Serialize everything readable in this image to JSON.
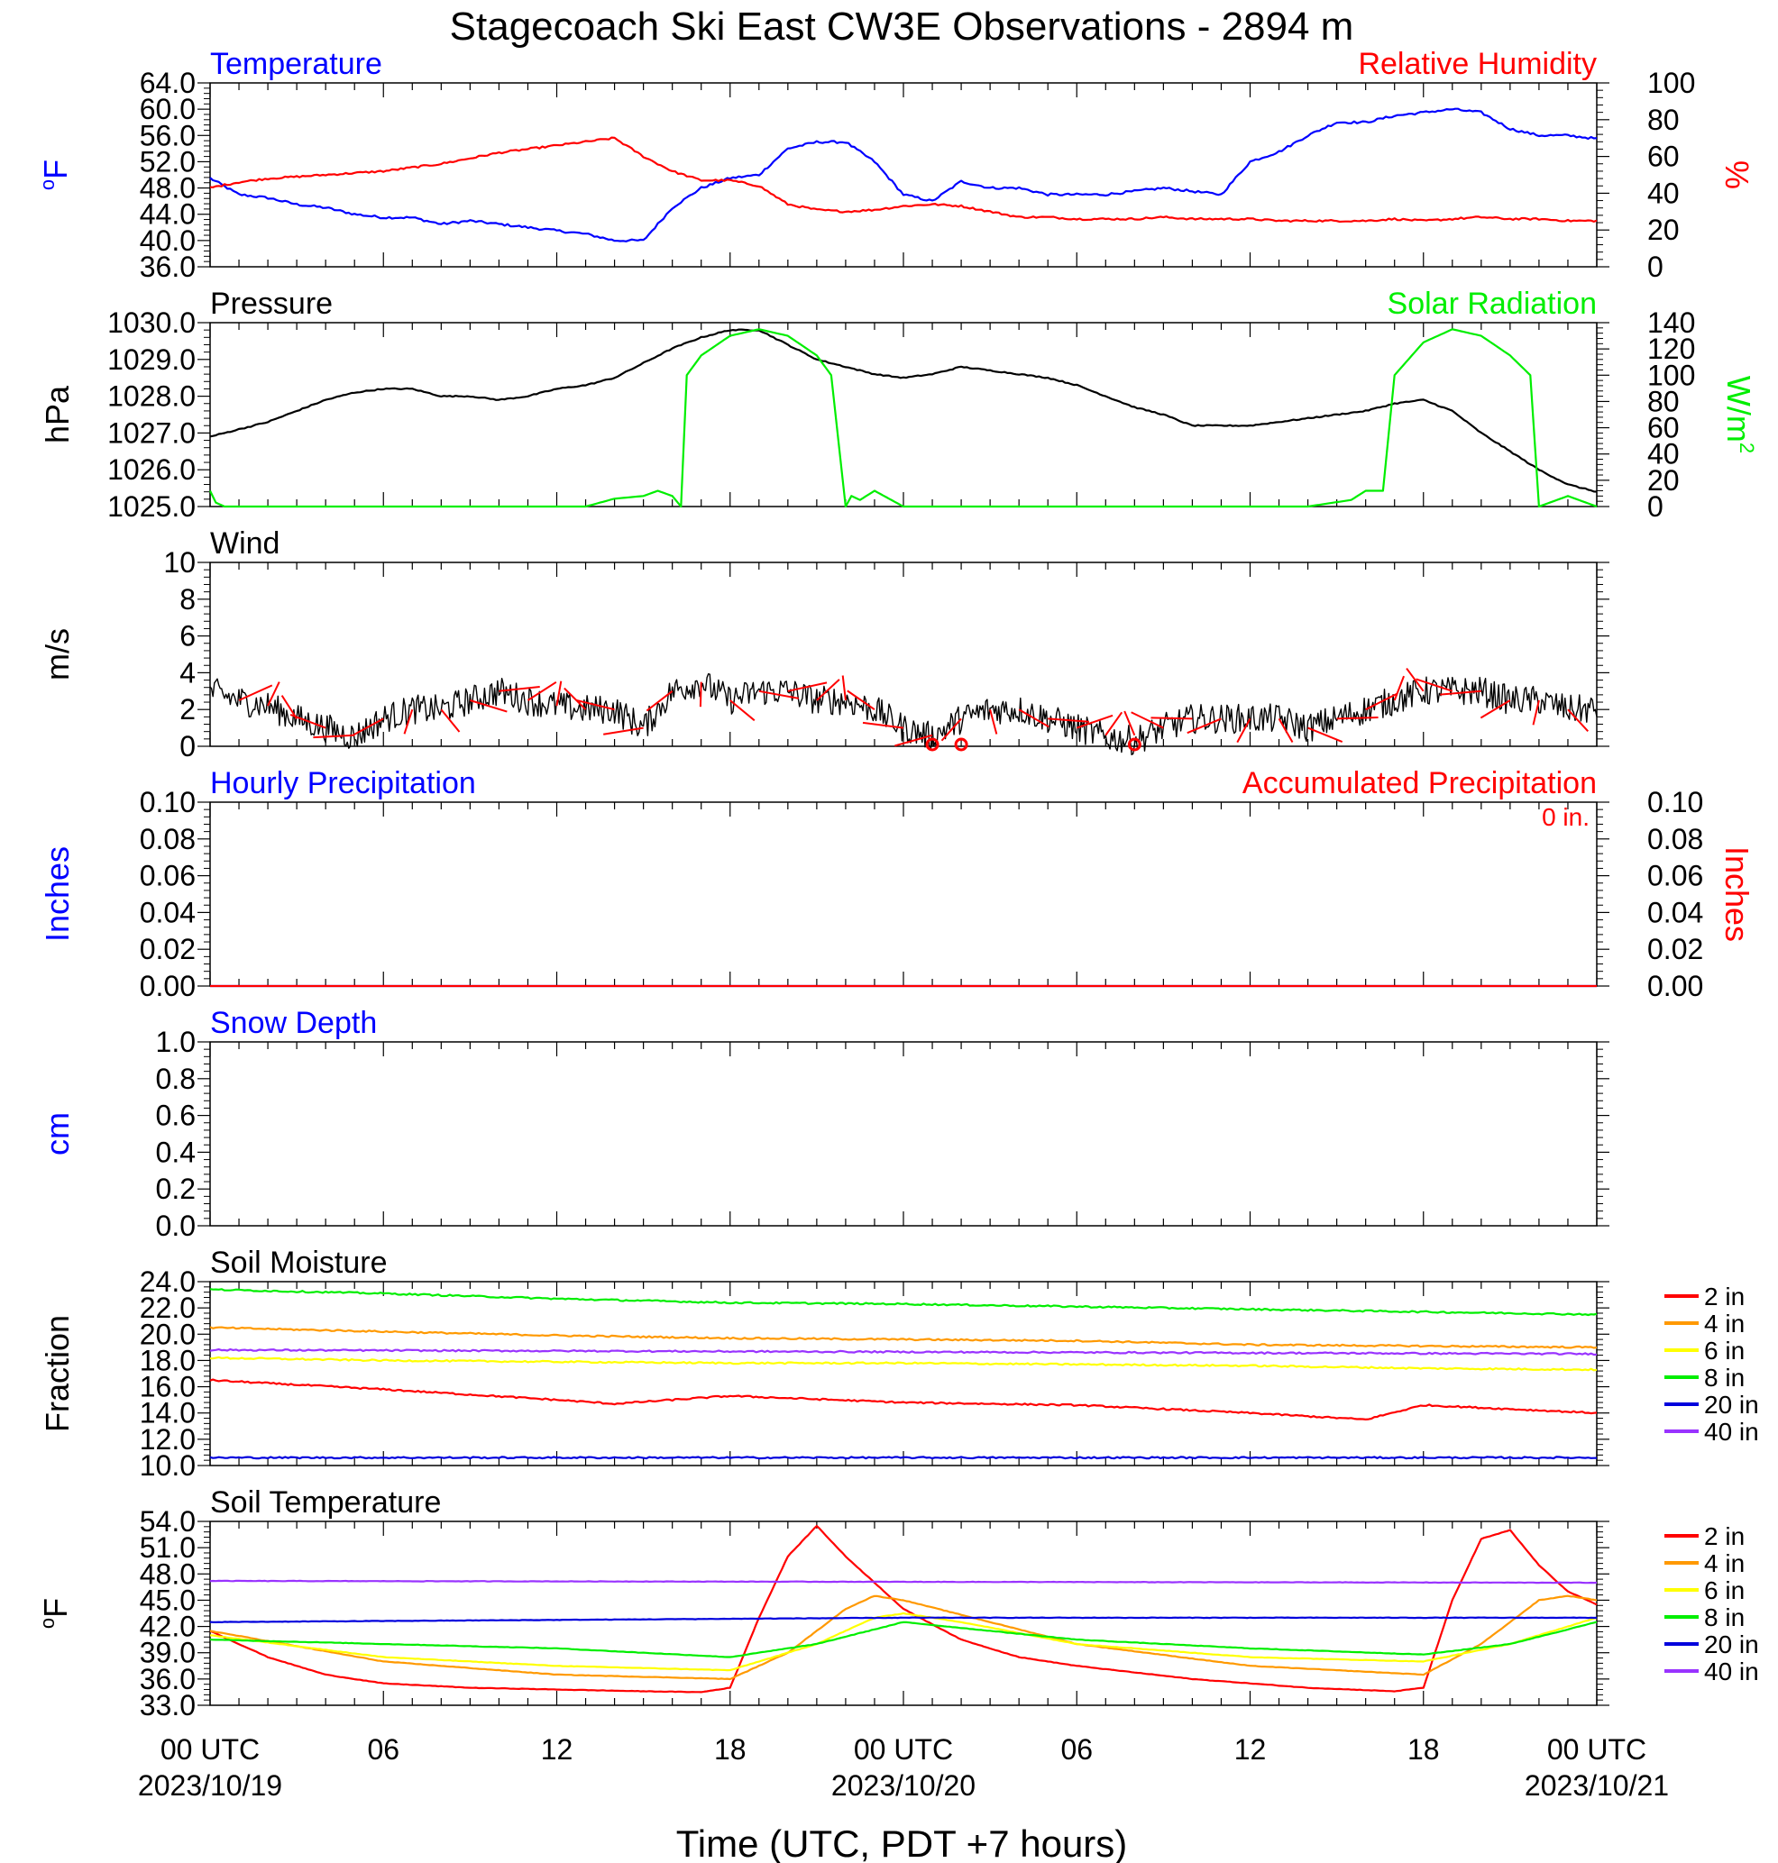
{
  "title": "Stagecoach Ski East CW3E Observations - 2894 m",
  "xlabel": "Time (UTC, PDT +7 hours)",
  "x_ticks": [
    {
      "hour": 0,
      "line1": "00 UTC",
      "line2": "2023/10/19"
    },
    {
      "hour": 6,
      "line1": "06",
      "line2": ""
    },
    {
      "hour": 12,
      "line1": "12",
      "line2": ""
    },
    {
      "hour": 18,
      "line1": "18",
      "line2": ""
    },
    {
      "hour": 24,
      "line1": "00 UTC",
      "line2": "2023/10/20"
    },
    {
      "hour": 30,
      "line1": "06",
      "line2": ""
    },
    {
      "hour": 36,
      "line1": "12",
      "line2": ""
    },
    {
      "hour": 42,
      "line1": "18",
      "line2": ""
    },
    {
      "hour": 48,
      "line1": "00 UTC",
      "line2": "2023/10/21"
    }
  ],
  "colors": {
    "temperature": "#0000ff",
    "humidity": "#ff0000",
    "pressure": "#000000",
    "solar": "#00ee00",
    "wind": "#000000",
    "barbs": "#ff0000",
    "2 in": "#ff0000",
    "4 in": "#ff9900",
    "6 in": "#ffff00",
    "8 in": "#00ee00",
    "20 in": "#0000dd",
    "40 in": "#9933ff"
  },
  "legend_labels": [
    "2 in",
    "4 in",
    "6 in",
    "8 in",
    "20 in",
    "40 in"
  ],
  "chart_data": [
    {
      "type": "line",
      "title_left": "Temperature",
      "title_right": "Relative Humidity",
      "ylabel": "°F",
      "ylabel_right": "%",
      "ylim": [
        36,
        64
      ],
      "ylim_right": [
        0,
        100
      ],
      "yticks": [
        "36.0",
        "40.0",
        "44.0",
        "48.0",
        "52.0",
        "56.0",
        "60.0",
        "64.0"
      ],
      "yticks_right": [
        "0",
        "20",
        "40",
        "60",
        "80",
        "100"
      ],
      "series": [
        {
          "name": "Temperature",
          "axis": "left",
          "color": "#0000ff",
          "x": [
            0,
            1,
            2,
            3,
            4,
            5,
            6,
            7,
            8,
            9,
            10,
            11,
            12,
            13,
            14,
            15,
            16,
            17,
            18,
            19,
            20,
            21,
            22,
            23,
            24,
            25,
            26,
            27,
            28,
            29,
            30,
            31,
            32,
            33,
            34,
            35,
            36,
            37,
            38,
            39,
            40,
            41,
            42,
            43,
            44,
            45,
            46,
            47,
            48
          ],
          "y": [
            49.5,
            47,
            46.5,
            45.5,
            45,
            44,
            43.5,
            43.5,
            42.5,
            43,
            42.5,
            42,
            41.5,
            41,
            40,
            40,
            45,
            48,
            49.5,
            50,
            54,
            55,
            55,
            52,
            47,
            46,
            49,
            48,
            48,
            47,
            47,
            47,
            47.5,
            48,
            47.5,
            47,
            52,
            53.5,
            56,
            58,
            58,
            59,
            59.5,
            60,
            59.5,
            57,
            56,
            56,
            55.5
          ]
        },
        {
          "name": "Relative Humidity",
          "axis": "right",
          "color": "#ff0000",
          "x": [
            0,
            1,
            2,
            3,
            4,
            5,
            6,
            7,
            8,
            9,
            10,
            11,
            12,
            13,
            14,
            15,
            16,
            17,
            18,
            19,
            20,
            21,
            22,
            23,
            24,
            25,
            26,
            27,
            28,
            29,
            30,
            31,
            32,
            33,
            34,
            35,
            36,
            37,
            38,
            39,
            40,
            41,
            42,
            43,
            44,
            45,
            46,
            47,
            48
          ],
          "y": [
            43,
            46,
            48,
            49,
            50,
            51,
            52,
            54,
            56,
            59,
            62,
            64,
            66,
            68,
            70,
            60,
            52,
            47,
            47,
            44,
            34,
            31,
            30,
            31,
            33,
            34,
            33,
            30,
            27,
            27,
            26,
            26,
            26,
            27,
            26,
            26,
            26,
            25,
            25,
            25,
            25,
            26,
            25,
            26,
            27,
            26,
            26,
            25,
            25
          ]
        }
      ]
    },
    {
      "type": "line",
      "title_left": "Pressure",
      "title_right": "Solar Radiation",
      "ylabel": "hPa",
      "ylabel_right": "W/m2",
      "ylim": [
        1025,
        1030
      ],
      "ylim_right": [
        0,
        140
      ],
      "yticks": [
        "1025.0",
        "1026.0",
        "1027.0",
        "1028.0",
        "1029.0",
        "1030.0"
      ],
      "yticks_right": [
        "0",
        "20",
        "40",
        "60",
        "80",
        "100",
        "120",
        "140"
      ],
      "series": [
        {
          "name": "Pressure",
          "axis": "left",
          "color": "#000000",
          "x": [
            0,
            1,
            2,
            3,
            4,
            5,
            6,
            7,
            8,
            9,
            10,
            11,
            12,
            13,
            14,
            15,
            16,
            17,
            18,
            19,
            20,
            21,
            22,
            23,
            24,
            25,
            26,
            27,
            28,
            29,
            30,
            31,
            32,
            33,
            34,
            35,
            36,
            37,
            38,
            39,
            40,
            41,
            42,
            43,
            44,
            45,
            46,
            47,
            48
          ],
          "y": [
            1026.9,
            1027.1,
            1027.3,
            1027.6,
            1027.9,
            1028.1,
            1028.2,
            1028.2,
            1028,
            1028,
            1027.9,
            1028,
            1028.2,
            1028.3,
            1028.5,
            1028.9,
            1029.3,
            1029.6,
            1029.8,
            1029.8,
            1029.4,
            1029.0,
            1028.8,
            1028.6,
            1028.5,
            1028.6,
            1028.8,
            1028.7,
            1028.6,
            1028.5,
            1028.3,
            1028.0,
            1027.7,
            1027.5,
            1027.2,
            1027.2,
            1027.2,
            1027.3,
            1027.4,
            1027.5,
            1027.6,
            1027.8,
            1027.9,
            1027.6,
            1027,
            1026.5,
            1026,
            1025.6,
            1025.4
          ]
        },
        {
          "name": "Solar Radiation",
          "axis": "right",
          "color": "#00ee00",
          "x": [
            0,
            0.2,
            0.5,
            6,
            13,
            14,
            15,
            15.5,
            16,
            16.3,
            16.5,
            17,
            18,
            19,
            20,
            21,
            21.5,
            22,
            22.2,
            22.5,
            23,
            24,
            37,
            38,
            39.5,
            40,
            40.6,
            41,
            42,
            43,
            44,
            45,
            45.7,
            46,
            47,
            48
          ],
          "y": [
            12,
            3,
            0,
            0,
            0,
            6,
            8,
            12,
            8,
            0,
            100,
            115,
            130,
            135,
            130,
            115,
            100,
            0,
            8,
            5,
            12,
            0,
            0,
            0,
            5,
            12,
            12,
            100,
            125,
            135,
            130,
            115,
            100,
            0,
            8,
            0
          ]
        }
      ]
    },
    {
      "type": "line",
      "title_left": "Wind",
      "ylabel": "m/s",
      "ylim": [
        0,
        10
      ],
      "yticks": [
        "0",
        "2",
        "4",
        "6",
        "8",
        "10"
      ],
      "series": [
        {
          "name": "Wind",
          "color": "#000000",
          "x": [
            0,
            1,
            2,
            3,
            4,
            5,
            6,
            7,
            8,
            9,
            10,
            11,
            12,
            13,
            14,
            15,
            16,
            17,
            18,
            19,
            20,
            21,
            22,
            23,
            24,
            25,
            26,
            27,
            28,
            29,
            30,
            31,
            32,
            33,
            34,
            35,
            36,
            37,
            38,
            39,
            40,
            41,
            42,
            43,
            44,
            45,
            46,
            47,
            48
          ],
          "y": [
            3,
            2.5,
            2.2,
            1.5,
            1,
            0.5,
            1.5,
            2,
            2,
            2.5,
            3,
            2.5,
            2.2,
            2,
            2,
            1,
            3,
            3.5,
            2.5,
            3,
            3,
            2.5,
            2.5,
            2,
            1,
            0.5,
            1.5,
            2,
            2,
            1.5,
            1,
            0.5,
            0.3,
            1,
            1.5,
            1.5,
            1.5,
            1.5,
            1,
            1.5,
            2,
            2.5,
            3,
            3,
            3,
            2.5,
            2.5,
            2,
            2
          ]
        }
      ],
      "calm_hours": [
        25,
        26,
        32
      ]
    },
    {
      "type": "line",
      "title_left": "Hourly Precipitation",
      "title_right": "Accumulated Precipitation",
      "annotation": "0 in.",
      "ylabel": "Inches",
      "ylabel_right": "Inches",
      "ylim": [
        0,
        0.1
      ],
      "ylim_right": [
        0,
        0.1
      ],
      "yticks": [
        "0.00",
        "0.02",
        "0.04",
        "0.06",
        "0.08",
        "0.10"
      ],
      "yticks_right": [
        "0.00",
        "0.02",
        "0.04",
        "0.06",
        "0.08",
        "0.10"
      ],
      "series": [
        {
          "name": "Hourly Precipitation",
          "axis": "left",
          "color": "#0000ff",
          "x": [
            0,
            48
          ],
          "y": [
            0,
            0
          ]
        },
        {
          "name": "Accumulated Precipitation",
          "axis": "right",
          "color": "#ff0000",
          "x": [
            0,
            48
          ],
          "y": [
            0,
            0
          ]
        }
      ]
    },
    {
      "type": "line",
      "title_left": "Snow Depth",
      "ylabel": "cm",
      "ylim": [
        0,
        1
      ],
      "yticks": [
        "0.0",
        "0.2",
        "0.4",
        "0.6",
        "0.8",
        "1.0"
      ],
      "series": []
    },
    {
      "type": "line",
      "title_left": "Soil Moisture",
      "ylabel": "Fraction",
      "ylim": [
        10,
        24
      ],
      "yticks": [
        "10.0",
        "12.0",
        "14.0",
        "16.0",
        "18.0",
        "20.0",
        "22.0",
        "24.0"
      ],
      "series": [
        {
          "name": "2 in",
          "color": "#ff0000",
          "x": [
            0,
            6,
            12,
            14,
            18,
            24,
            30,
            36,
            40,
            42,
            48
          ],
          "y": [
            16.5,
            15.8,
            15.0,
            14.7,
            15.3,
            14.8,
            14.6,
            14.0,
            13.5,
            14.6,
            14.0
          ]
        },
        {
          "name": "4 in",
          "color": "#ff9900",
          "x": [
            0,
            6,
            12,
            18,
            24,
            30,
            36,
            42,
            48
          ],
          "y": [
            20.5,
            20.2,
            19.9,
            19.7,
            19.6,
            19.5,
            19.2,
            19.1,
            19.0
          ]
        },
        {
          "name": "6 in",
          "color": "#ffff00",
          "x": [
            0,
            6,
            12,
            18,
            24,
            30,
            36,
            42,
            48
          ],
          "y": [
            18.2,
            18.0,
            17.9,
            17.8,
            17.8,
            17.7,
            17.6,
            17.4,
            17.3
          ]
        },
        {
          "name": "8 in",
          "color": "#00ee00",
          "x": [
            0,
            6,
            12,
            18,
            24,
            30,
            36,
            42,
            48
          ],
          "y": [
            23.4,
            23.1,
            22.7,
            22.4,
            22.3,
            22.1,
            21.9,
            21.7,
            21.5
          ]
        },
        {
          "name": "20 in",
          "color": "#0000dd",
          "x": [
            0,
            48
          ],
          "y": [
            10.6,
            10.6
          ]
        },
        {
          "name": "40 in",
          "color": "#9933ff",
          "x": [
            0,
            48
          ],
          "y": [
            18.8,
            18.5
          ]
        }
      ]
    },
    {
      "type": "line",
      "title_left": "Soil Temperature",
      "ylabel": "°F",
      "ylim": [
        33,
        54
      ],
      "yticks": [
        "33.0",
        "36.0",
        "39.0",
        "42.0",
        "45.0",
        "48.0",
        "51.0",
        "54.0"
      ],
      "series": [
        {
          "name": "2 in",
          "color": "#ff0000",
          "x": [
            0,
            2,
            4,
            6,
            9,
            12,
            15,
            17,
            18,
            19,
            20,
            21,
            22,
            24,
            26,
            28,
            30,
            34,
            38,
            41,
            42,
            43,
            44,
            45,
            46,
            47,
            48
          ],
          "y": [
            41.5,
            38.5,
            36.5,
            35.5,
            35,
            34.8,
            34.6,
            34.5,
            35,
            43,
            50,
            53.5,
            50,
            44,
            40.5,
            38.5,
            37.5,
            36,
            35,
            34.6,
            35,
            45,
            52,
            53,
            49,
            46,
            44.5
          ]
        },
        {
          "name": "4 in",
          "color": "#ff9900",
          "x": [
            0,
            6,
            12,
            18,
            20,
            22,
            23,
            24,
            30,
            36,
            42,
            44,
            46,
            47,
            48
          ],
          "y": [
            41.5,
            38,
            36.5,
            36,
            39,
            44,
            45.5,
            45,
            40,
            37.5,
            36.5,
            40,
            45,
            45.5,
            45
          ]
        },
        {
          "name": "6 in",
          "color": "#ffff00",
          "x": [
            0,
            6,
            12,
            18,
            21,
            23,
            24,
            26,
            30,
            36,
            42,
            45,
            48
          ],
          "y": [
            41,
            38.5,
            37.5,
            37,
            40,
            43,
            43.5,
            42.5,
            40,
            38.5,
            38,
            40,
            43
          ]
        },
        {
          "name": "8 in",
          "color": "#00ee00",
          "x": [
            0,
            6,
            12,
            18,
            21,
            24,
            27,
            30,
            36,
            42,
            45,
            48
          ],
          "y": [
            40.5,
            40,
            39.5,
            38.5,
            40,
            42.5,
            41.5,
            40.5,
            39.5,
            38.8,
            40,
            42.5
          ]
        },
        {
          "name": "20 in",
          "color": "#0000dd",
          "x": [
            0,
            24,
            48
          ],
          "y": [
            42.5,
            43,
            43
          ]
        },
        {
          "name": "40 in",
          "color": "#9933ff",
          "x": [
            0,
            48
          ],
          "y": [
            47.2,
            47
          ]
        }
      ]
    }
  ]
}
